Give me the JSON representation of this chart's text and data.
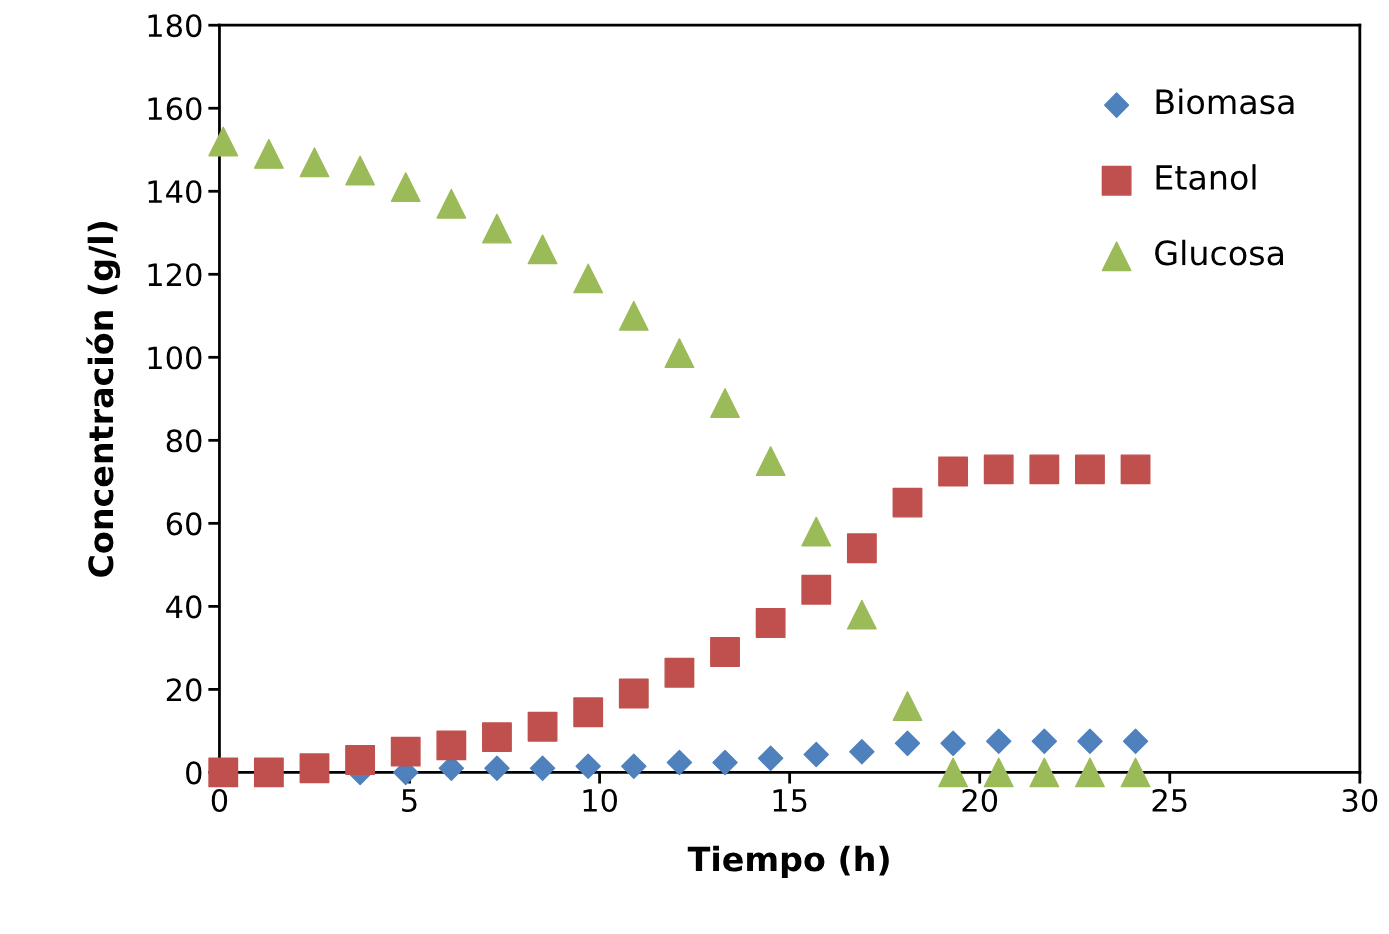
{
  "chart_data": {
    "type": "scatter",
    "xlabel": "Tiempo (h)",
    "ylabel": "Concentración (g/l)",
    "x": [
      0.1,
      1.3,
      2.5,
      3.7,
      4.9,
      6.1,
      7.3,
      8.5,
      9.7,
      10.9,
      12.1,
      13.3,
      14.5,
      15.7,
      16.9,
      18.1,
      19.3,
      20.5,
      21.7,
      22.9,
      24.1
    ],
    "series": [
      {
        "name": "Biomasa",
        "color": "#4f81bd",
        "marker": "diamond",
        "values": [
          null,
          null,
          null,
          0,
          0,
          1,
          1,
          1,
          1.5,
          1.5,
          2.4,
          2.4,
          3.4,
          4.3,
          5,
          7,
          7,
          7.5,
          7.5,
          7.5,
          7.5
        ]
      },
      {
        "name": "Etanol",
        "color": "#c0504d",
        "marker": "square",
        "values": [
          0,
          0,
          1,
          3,
          5,
          6.5,
          8.5,
          11,
          14.5,
          19,
          24,
          29,
          36,
          44,
          54,
          65,
          72.5,
          73,
          73,
          73,
          73
        ]
      },
      {
        "name": "Glucosa",
        "color": "#9bbb59",
        "marker": "triangle",
        "values": [
          152,
          149,
          147,
          145,
          141,
          137,
          131,
          126,
          119,
          110,
          101,
          89,
          75,
          58,
          38,
          16,
          0,
          0,
          0,
          0,
          0
        ]
      }
    ],
    "xlim": [
      0,
      30
    ],
    "xticks": [
      0,
      5,
      10,
      15,
      20,
      25,
      30
    ],
    "ylim": [
      0,
      180
    ],
    "yticks": [
      0,
      20,
      40,
      60,
      80,
      100,
      120,
      140,
      160,
      180
    ],
    "grid": false,
    "legend": "top right"
  }
}
